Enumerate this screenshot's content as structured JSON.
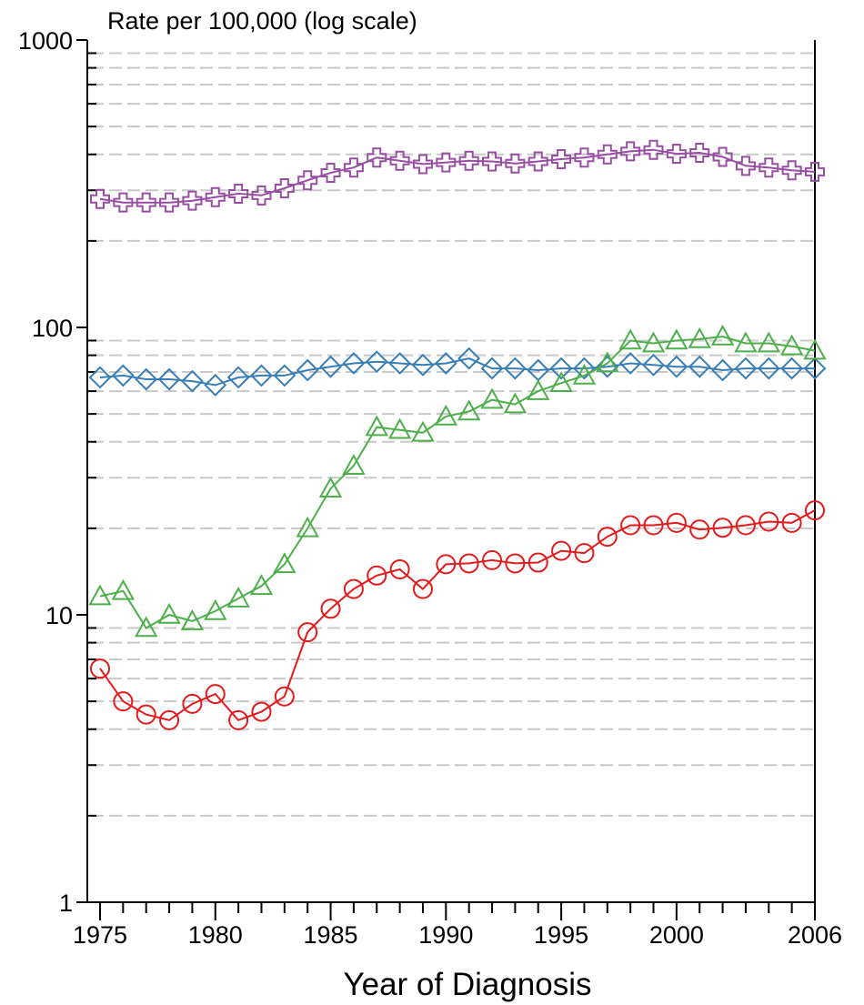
{
  "chart_data": {
    "type": "line",
    "ylabel": "Rate per 100,000 (log scale)",
    "xlabel": "Year of Diagnosis",
    "yscale": "log",
    "ylim": [
      1,
      1000
    ],
    "xlim": [
      1975,
      2006
    ],
    "grid": "y-minor-dashed",
    "y_ticks": [
      "1",
      "10",
      "100",
      "1000"
    ],
    "x_ticks": [
      "1975",
      "1980",
      "1985",
      "1990",
      "1995",
      "2000",
      "2006"
    ],
    "x": [
      1975,
      1976,
      1977,
      1978,
      1979,
      1980,
      1981,
      1982,
      1983,
      1984,
      1985,
      1986,
      1987,
      1988,
      1989,
      1990,
      1991,
      1992,
      1993,
      1994,
      1995,
      1996,
      1997,
      1998,
      1999,
      2000,
      2001,
      2002,
      2003,
      2004,
      2005,
      2006
    ],
    "series": [
      {
        "marker": "cross",
        "color": "#984ea3",
        "values": [
          280,
          272,
          272,
          272,
          276,
          284,
          292,
          288,
          305,
          325,
          345,
          360,
          390,
          380,
          370,
          375,
          380,
          378,
          372,
          378,
          385,
          390,
          400,
          410,
          415,
          402,
          405,
          392,
          365,
          360,
          352,
          348
        ]
      },
      {
        "marker": "diamond",
        "color": "#377eb8",
        "values": [
          67,
          68,
          66,
          66,
          65,
          63,
          67,
          68,
          68,
          71,
          73,
          75,
          76,
          75,
          74,
          75,
          78,
          72,
          72,
          71,
          72,
          72,
          73,
          75,
          74,
          73,
          73,
          71,
          72,
          72,
          72,
          72
        ]
      },
      {
        "marker": "triangle",
        "color": "#4daf4a",
        "values": [
          11.6,
          12.1,
          9.0,
          10.0,
          9.5,
          10.3,
          11.4,
          12.6,
          15.0,
          20.0,
          27.5,
          33.0,
          45.0,
          44.0,
          43.0,
          49.0,
          51.0,
          56.0,
          54.0,
          60.0,
          64.0,
          68.0,
          75.0,
          90.0,
          88.0,
          90.0,
          91.0,
          93.0,
          88.0,
          88.0,
          86.0,
          83.0
        ]
      },
      {
        "marker": "circle",
        "color": "#e41a1c",
        "values": [
          6.5,
          5.0,
          4.5,
          4.3,
          4.9,
          5.3,
          4.3,
          4.6,
          5.2,
          8.7,
          10.5,
          12.3,
          13.7,
          14.4,
          12.3,
          15.0,
          15.1,
          15.5,
          15.1,
          15.2,
          16.7,
          16.4,
          18.7,
          20.5,
          20.5,
          20.9,
          19.8,
          20.1,
          20.5,
          21.1,
          20.9,
          23.1
        ]
      }
    ]
  }
}
